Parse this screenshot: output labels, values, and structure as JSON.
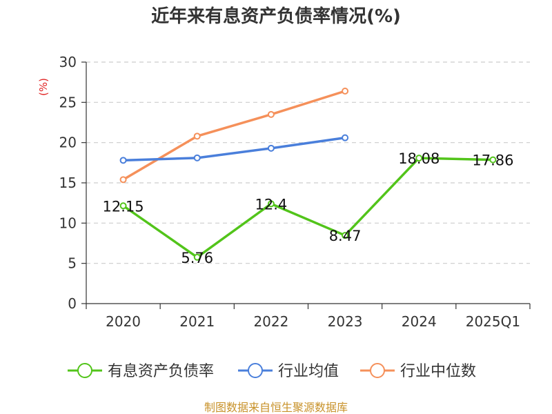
{
  "chart_data": {
    "type": "line",
    "title": "近年来有息资产负债率情况(%)",
    "ylabel": "(%)",
    "categories": [
      "2020",
      "2021",
      "2022",
      "2023",
      "2024",
      "2025Q1"
    ],
    "ylim": [
      0,
      30
    ],
    "yticks": [
      0,
      5,
      10,
      15,
      20,
      25,
      30
    ],
    "grid": true,
    "legend_position": "bottom",
    "series": [
      {
        "name": "有息资产负债率",
        "color": "#52c41a",
        "values": [
          12.15,
          5.76,
          12.4,
          8.47,
          18.08,
          17.86
        ],
        "labels": [
          "12.15",
          "5.76",
          "12.4",
          "8.47",
          "18.08",
          "17.86"
        ]
      },
      {
        "name": "行业均值",
        "color": "#4a7fdb",
        "values": [
          17.8,
          18.1,
          19.3,
          20.6,
          null,
          null
        ]
      },
      {
        "name": "行业中位数",
        "color": "#f5905a",
        "values": [
          15.4,
          20.8,
          23.5,
          26.4,
          null,
          null
        ]
      }
    ]
  },
  "source": "制图数据来自恒生聚源数据库"
}
